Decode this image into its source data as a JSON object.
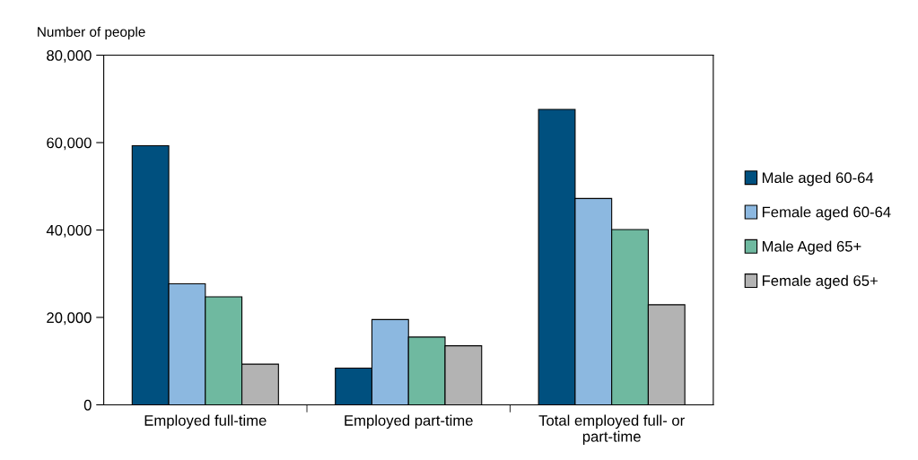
{
  "chart_data": {
    "type": "bar",
    "ylabel": "Number of people",
    "categories": [
      "Employed full-time",
      "Employed part-time",
      "Total employed full- or\npart-time"
    ],
    "series": [
      {
        "name": "Male aged 60-64",
        "color": "#00507f",
        "values": [
          59300,
          8400,
          67600
        ]
      },
      {
        "name": "Female aged 60-64",
        "color": "#8cb8e0",
        "values": [
          27700,
          19500,
          47200
        ]
      },
      {
        "name": "Male Aged 65+",
        "color": "#6fb9a0",
        "values": [
          24700,
          15500,
          40100
        ]
      },
      {
        "name": "Female aged 65+",
        "color": "#b3b3b3",
        "values": [
          9300,
          13500,
          22900
        ]
      }
    ],
    "ylim": [
      0,
      80000
    ],
    "yticks": [
      0,
      {
        "value": 20000,
        "label": "20,000"
      },
      {
        "value": 40000,
        "label": "40,000"
      },
      {
        "value": 60000,
        "label": "60,000"
      },
      {
        "value": 80000,
        "label": "80,000"
      }
    ],
    "grid": false,
    "legend": "right"
  }
}
